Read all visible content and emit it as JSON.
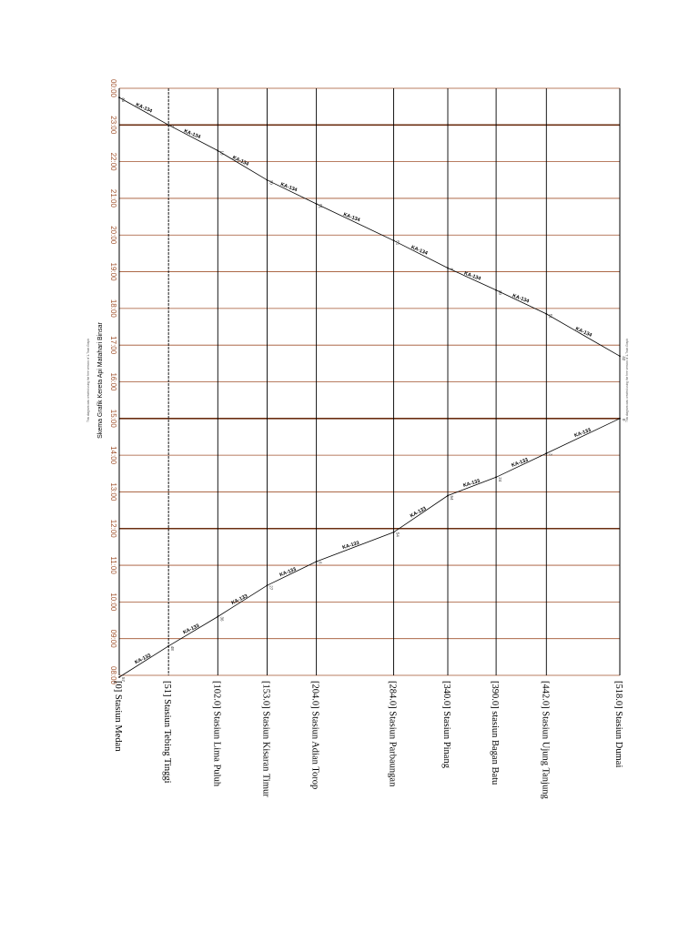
{
  "chart_data": {
    "type": "line",
    "title": "Skema Grafik Kereta Api Matahari Binsar",
    "note": "This diagram was created using the free version of 1-Train Graph",
    "time_axis": {
      "min_hour": 8,
      "max_hour": 24,
      "ticks": [
        {
          "hour": 8,
          "label": "08:00"
        },
        {
          "hour": 9,
          "label": "09:00"
        },
        {
          "hour": 10,
          "label": "10:00"
        },
        {
          "hour": 11,
          "label": "11:00"
        },
        {
          "hour": 12,
          "label": "12:00"
        },
        {
          "hour": 13,
          "label": "13:00"
        },
        {
          "hour": 14,
          "label": "14:00"
        },
        {
          "hour": 15,
          "label": "15:00"
        },
        {
          "hour": 16,
          "label": "16:00"
        },
        {
          "hour": 17,
          "label": "17:00"
        },
        {
          "hour": 18,
          "label": "18:00"
        },
        {
          "hour": 19,
          "label": "19:00"
        },
        {
          "hour": 20,
          "label": "20:00"
        },
        {
          "hour": 21,
          "label": "21:00"
        },
        {
          "hour": 22,
          "label": "22:00"
        },
        {
          "hour": 23,
          "label": "23:00"
        },
        {
          "hour": 24,
          "label": "00:00"
        }
      ],
      "major_hours": [
        12,
        15,
        23
      ]
    },
    "distance_axis": {
      "min_km": 0,
      "max_km": 518
    },
    "stations": [
      {
        "km": 0,
        "label": "[0] Stasiun Medan"
      },
      {
        "km": 51,
        "label": "[51] Stasiun Tebing Tinggi"
      },
      {
        "km": 102,
        "label": "[102.0] Stasiun Lima Puluh"
      },
      {
        "km": 153,
        "label": "[153.0] Stasiun Kisaran Timur"
      },
      {
        "km": 204,
        "label": "[204.0] Stasiun Adian Torop"
      },
      {
        "km": 284,
        "label": "[284.0] Stasiun Parbaungan"
      },
      {
        "km": 340,
        "label": "[340.0] Stasiun Pinang"
      },
      {
        "km": 390,
        "label": "[390.0] stasiun Bagan Batu"
      },
      {
        "km": 442,
        "label": "[442.0] Stasiun Ujung Tanjung"
      },
      {
        "km": 518,
        "label": "[518.0] Stasiun Dumai"
      }
    ],
    "series": [
      {
        "name": "KA-133",
        "color": "#000000",
        "points": [
          {
            "km": 0,
            "hour": 7.95
          },
          {
            "km": 51,
            "hour": 8.8
          },
          {
            "km": 102,
            "hour": 9.6
          },
          {
            "km": 153,
            "hour": 10.45
          },
          {
            "km": 204,
            "hour": 11.1
          },
          {
            "km": 284,
            "hour": 11.9
          },
          {
            "km": 340,
            "hour": 12.9
          },
          {
            "km": 390,
            "hour": 13.4
          },
          {
            "km": 442,
            "hour": 14.05
          },
          {
            "km": 518,
            "hour": 15.0
          }
        ],
        "label_kms": [
          25,
          75,
          125,
          175,
          240,
          310,
          365,
          415,
          480
        ]
      },
      {
        "name": "KA-134",
        "color": "#000000",
        "points": [
          {
            "km": 0,
            "hour": 23.75
          },
          {
            "km": 51,
            "hour": 23.0
          },
          {
            "km": 102,
            "hour": 22.3
          },
          {
            "km": 153,
            "hour": 21.5
          },
          {
            "km": 204,
            "hour": 20.85
          },
          {
            "km": 284,
            "hour": 19.85
          },
          {
            "km": 340,
            "hour": 19.1
          },
          {
            "km": 390,
            "hour": 18.5
          },
          {
            "km": 442,
            "hour": 17.85
          },
          {
            "km": 518,
            "hour": 16.7
          }
        ],
        "label_kms": [
          25,
          75,
          125,
          175,
          240,
          310,
          365,
          415,
          480
        ]
      }
    ],
    "grid": true
  }
}
